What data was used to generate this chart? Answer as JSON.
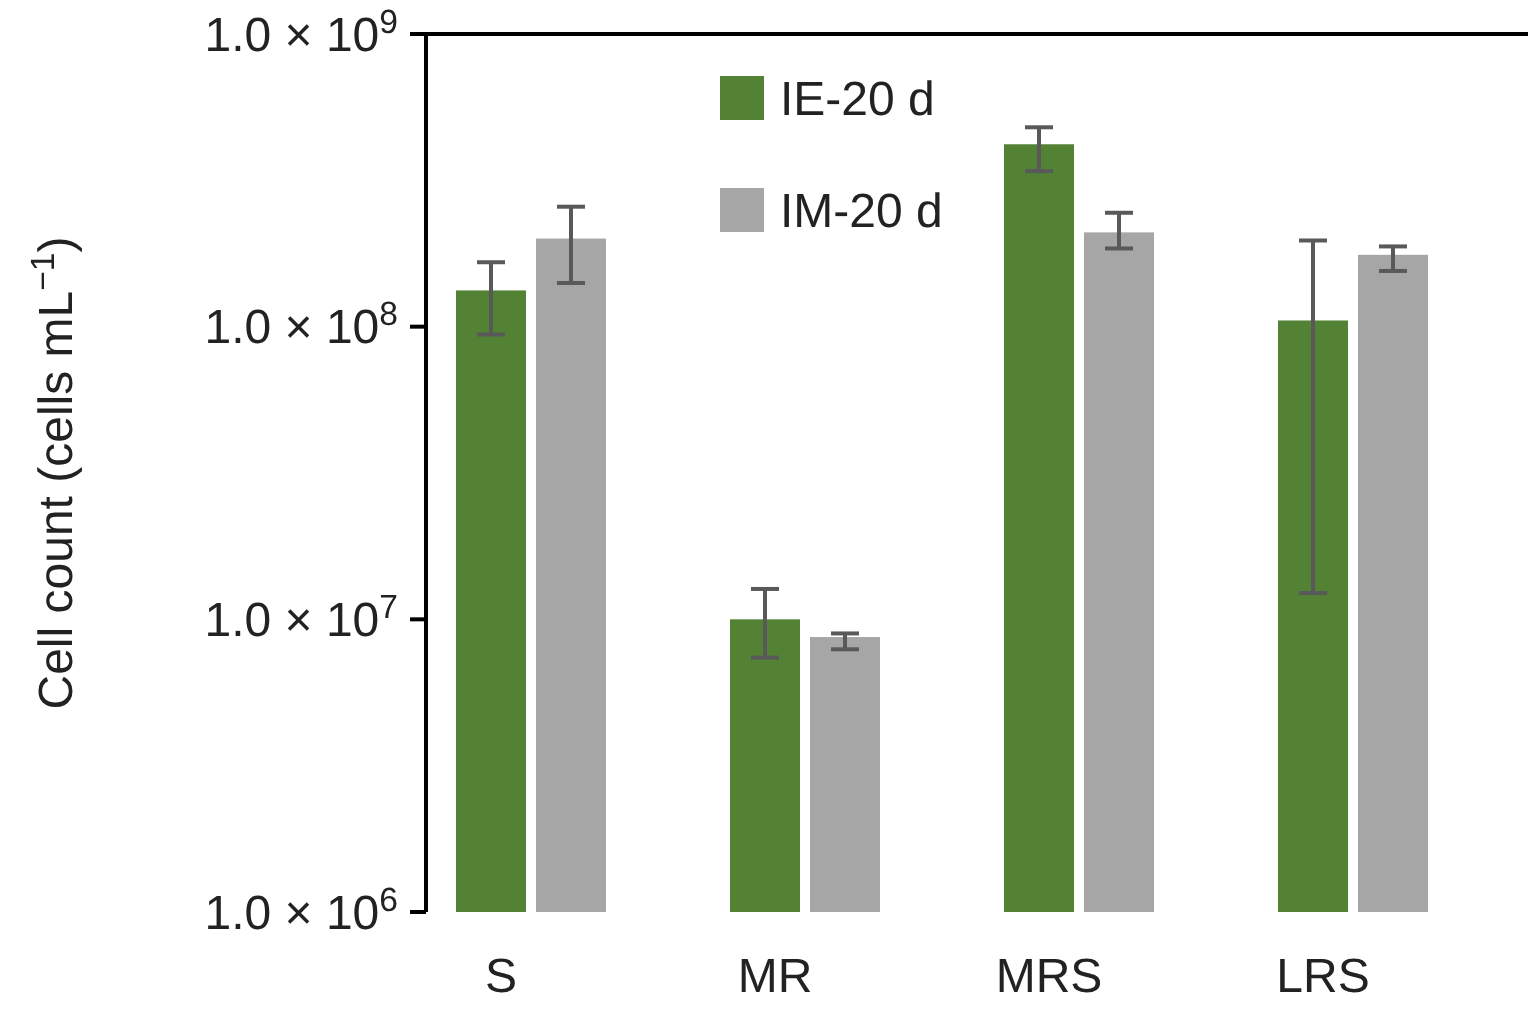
{
  "chart_data": {
    "type": "bar",
    "ylabel": "Cell count (cells mL$^{−1}$)",
    "categories": [
      "S",
      "MR",
      "MRS",
      "LRS"
    ],
    "series": [
      {
        "name": "IE-20 d",
        "color": "#548235",
        "values": [
          133000000.0,
          10000000.0,
          420000000.0,
          105000000.0
        ],
        "errors": [
          [
            94000000.0,
            166000000.0
          ],
          [
            7400000.0,
            12700000.0
          ],
          [
            340000000.0,
            480000000.0
          ],
          [
            12300000.0,
            197000000.0
          ]
        ]
      },
      {
        "name": "IM-20 d",
        "color": "#a6a6a6",
        "values": [
          200000000.0,
          8700000.0,
          210000000.0,
          176000000.0
        ],
        "errors": [
          [
            141000000.0,
            257000000.0
          ],
          [
            7900000.0,
            8950000.0
          ],
          [
            185000000.0,
            245000000.0
          ],
          [
            155000000.0,
            188000000.0
          ]
        ]
      }
    ],
    "log": true,
    "ylim": [
      1000000.0,
      1000000000.0
    ],
    "yticks": [
      {
        "value": 1000000.0,
        "label": "1.0 × 10$^{6}$"
      },
      {
        "value": 10000000.0,
        "label": "1.0 × 10$^{7}$"
      },
      {
        "value": 100000000.0,
        "label": "1.0 × 10$^{8}$"
      },
      {
        "value": 1000000000.0,
        "label": "1.0 × 10$^{9}$"
      }
    ],
    "legend": "top",
    "grid": false
  }
}
